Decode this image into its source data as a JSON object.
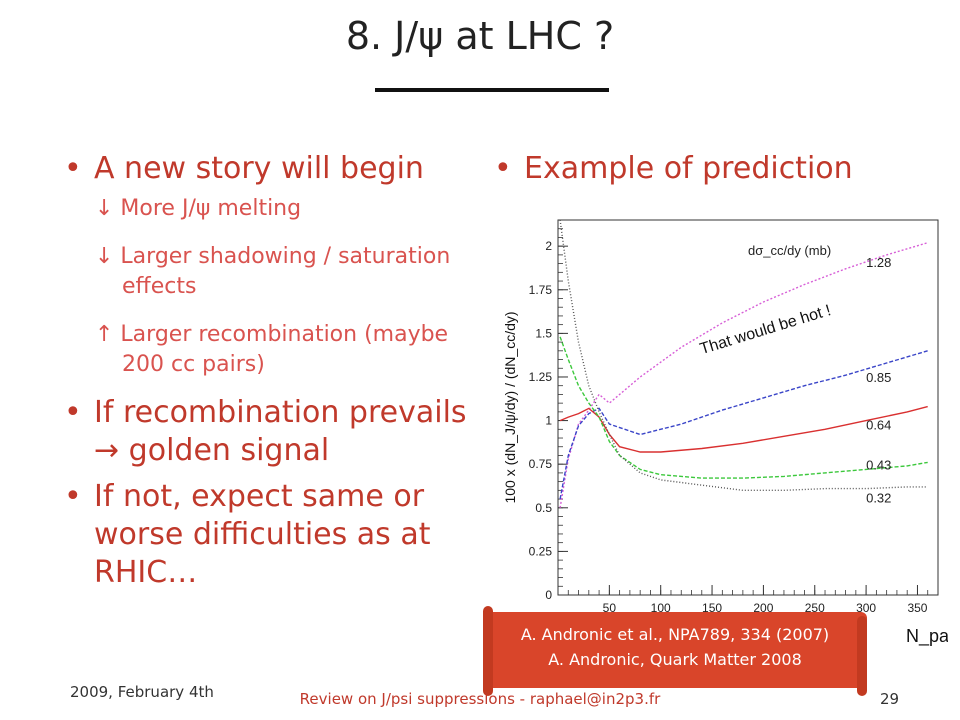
{
  "slide": {
    "title": "8. J/ψ at LHC ?",
    "left_bullets": [
      {
        "text": "A new story will begin",
        "subs": [
          "↓ More J/ψ melting",
          "↓ Larger shadowing / saturation effects",
          "↑ Larger recombination (maybe 200 cc pairs)"
        ]
      },
      {
        "text": "If recombination prevails → golden signal",
        "subs": []
      },
      {
        "text": "If not, expect same or worse difficulties  as at RHIC…",
        "subs": []
      }
    ],
    "right_bullet": "Example of prediction",
    "callout": {
      "line1": "A. Andronic et al., NPA789, 334 (2007)",
      "line2": "A. Andronic, Quark Matter 2008"
    },
    "footer": {
      "date": "2009, February 4th",
      "center": "Review on J/psi suppressions - raphael@in2p3.fr",
      "page": "29"
    }
  },
  "chart_data": {
    "type": "line",
    "ylabel": "100 x (dN_J/ψ/dy) / (dN_cc/dy)",
    "xlabel": "N_part",
    "legend_title": "dσ_cc/dy (mb)",
    "annotation": "That would be hot !",
    "xlim": [
      0,
      370
    ],
    "ylim": [
      0,
      2.15
    ],
    "xticks": [
      "50",
      "100",
      "150",
      "200",
      "250",
      "300",
      "350"
    ],
    "yticks": [
      "0",
      "0.25",
      "0.5",
      "0.75",
      "1",
      "1.25",
      "1.5",
      "1.75",
      "2"
    ],
    "series": [
      {
        "name": "1.28",
        "color": "#d75fd7",
        "dash": "2,2",
        "x": [
          2,
          10,
          20,
          30,
          40,
          50,
          80,
          120,
          160,
          200,
          240,
          280,
          320,
          360
        ],
        "y": [
          0.5,
          0.78,
          0.98,
          1.06,
          1.15,
          1.1,
          1.25,
          1.42,
          1.56,
          1.68,
          1.78,
          1.87,
          1.95,
          2.02
        ]
      },
      {
        "name": "0.85",
        "color": "#3a45c8",
        "dash": "4,2",
        "x": [
          2,
          10,
          20,
          30,
          40,
          50,
          80,
          120,
          160,
          200,
          240,
          280,
          320,
          360
        ],
        "y": [
          0.55,
          0.8,
          0.97,
          1.04,
          1.07,
          0.98,
          0.92,
          0.98,
          1.06,
          1.13,
          1.2,
          1.26,
          1.33,
          1.4
        ]
      },
      {
        "name": "0.64",
        "color": "#d93030",
        "dash": "",
        "x": [
          2,
          10,
          20,
          30,
          40,
          50,
          60,
          80,
          100,
          140,
          180,
          220,
          260,
          300,
          340,
          360
        ],
        "y": [
          1.0,
          1.02,
          1.04,
          1.07,
          1.02,
          0.92,
          0.85,
          0.82,
          0.82,
          0.84,
          0.87,
          0.91,
          0.95,
          1.0,
          1.05,
          1.08
        ]
      },
      {
        "name": "0.43",
        "color": "#3cc83c",
        "dash": "4,2",
        "x": [
          2,
          10,
          20,
          30,
          40,
          50,
          60,
          80,
          100,
          140,
          180,
          220,
          260,
          300,
          340,
          360
        ],
        "y": [
          1.48,
          1.35,
          1.2,
          1.1,
          1.02,
          0.88,
          0.8,
          0.72,
          0.69,
          0.67,
          0.67,
          0.68,
          0.7,
          0.72,
          0.74,
          0.76
        ]
      },
      {
        "name": "0.32",
        "color": "#555555",
        "dash": "1,2",
        "x": [
          2,
          10,
          20,
          30,
          40,
          50,
          60,
          80,
          100,
          140,
          180,
          220,
          260,
          300,
          340,
          360
        ],
        "y": [
          2.15,
          1.8,
          1.45,
          1.2,
          1.05,
          0.92,
          0.8,
          0.7,
          0.66,
          0.63,
          0.6,
          0.6,
          0.61,
          0.61,
          0.62,
          0.62
        ]
      }
    ]
  }
}
